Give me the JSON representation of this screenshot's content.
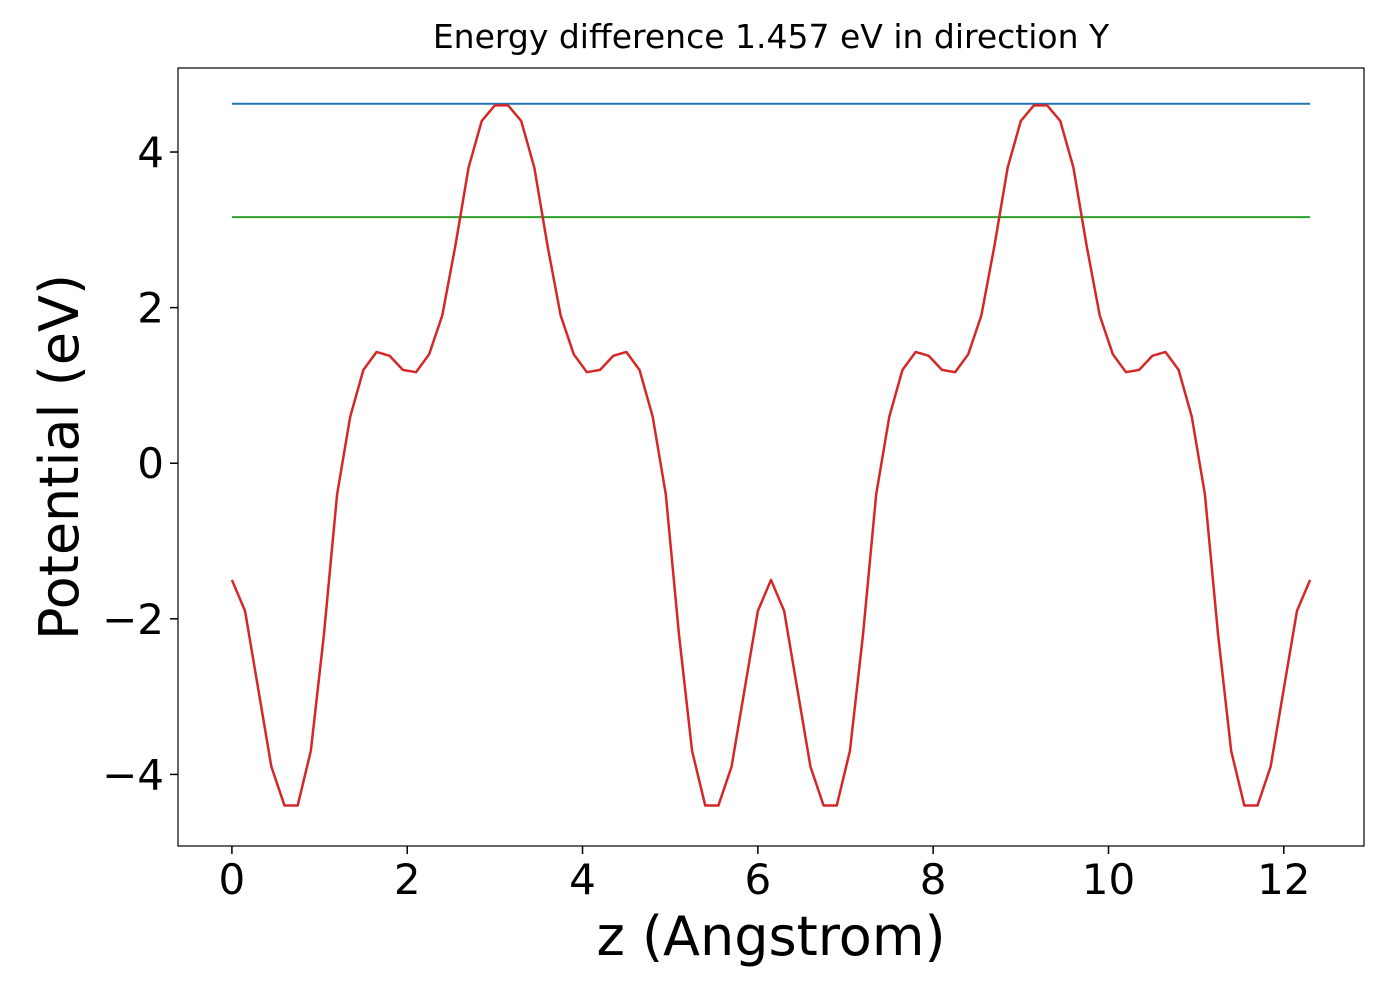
{
  "chart_data": {
    "type": "line",
    "title": "Energy difference 1.457 eV in direction Y",
    "xlabel": "z (Angstrom)",
    "ylabel": "Potential (eV)",
    "x": [
      0,
      0.15,
      0.3,
      0.45,
      0.6,
      0.75,
      0.9,
      1.05,
      1.2,
      1.35,
      1.5,
      1.65,
      1.8,
      1.95,
      2.1,
      2.25,
      2.4,
      2.55,
      2.7,
      2.85,
      3.0,
      3.15,
      3.3,
      3.45,
      3.6,
      3.75,
      3.9,
      4.05,
      4.2,
      4.35,
      4.5,
      4.65,
      4.8,
      4.95,
      5.1,
      5.25,
      5.4,
      5.55,
      5.7,
      5.85,
      6.0,
      6.15,
      6.3,
      6.45,
      6.6,
      6.75,
      6.9,
      7.05,
      7.2,
      7.35,
      7.5,
      7.65,
      7.8,
      7.95,
      8.1,
      8.25,
      8.4,
      8.55,
      8.7,
      8.85,
      9.0,
      9.15,
      9.3,
      9.45,
      9.6,
      9.75,
      9.9,
      10.05,
      10.2,
      10.35,
      10.5,
      10.65,
      10.8,
      10.95,
      11.1,
      11.25,
      11.4,
      11.55,
      11.7,
      11.85,
      12.0,
      12.15,
      12.3
    ],
    "series": [
      {
        "color": "#d62728",
        "values": [
          -1.5,
          -1.9,
          -2.9,
          -3.9,
          -4.4,
          -4.4,
          -3.7,
          -2.2,
          -0.4,
          0.6,
          1.2,
          1.43,
          1.38,
          1.2,
          1.17,
          1.4,
          1.9,
          2.8,
          3.8,
          4.4,
          4.6,
          4.6,
          4.4,
          3.8,
          2.8,
          1.9,
          1.4,
          1.17,
          1.2,
          1.38,
          1.43,
          1.2,
          0.6,
          -0.4,
          -2.2,
          -3.7,
          -4.4,
          -4.4,
          -3.9,
          -2.9,
          -1.9,
          -1.5,
          -1.9,
          -2.9,
          -3.9,
          -4.4,
          -4.4,
          -3.7,
          -2.2,
          -0.4,
          0.6,
          1.2,
          1.43,
          1.38,
          1.2,
          1.17,
          1.4,
          1.9,
          2.8,
          3.8,
          4.4,
          4.6,
          4.6,
          4.4,
          3.8,
          2.8,
          1.9,
          1.4,
          1.17,
          1.2,
          1.38,
          1.43,
          1.2,
          0.6,
          -0.4,
          -2.2,
          -3.7,
          -4.4,
          -4.4,
          -3.9,
          -2.9,
          -1.9,
          -1.5
        ]
      }
    ],
    "hlines": [
      {
        "value": 4.62,
        "color": "#1f77b4"
      },
      {
        "value": 3.163,
        "color": "#2ca02c"
      }
    ],
    "xlim": [
      -0.615,
      12.915
    ],
    "ylim": [
      -4.92,
      5.08
    ],
    "xticks": [
      0,
      2,
      4,
      6,
      8,
      10,
      12
    ],
    "yticks": [
      {
        "value": -4,
        "label": "−4"
      },
      {
        "value": -2,
        "label": "−2"
      },
      0,
      2,
      4
    ]
  }
}
